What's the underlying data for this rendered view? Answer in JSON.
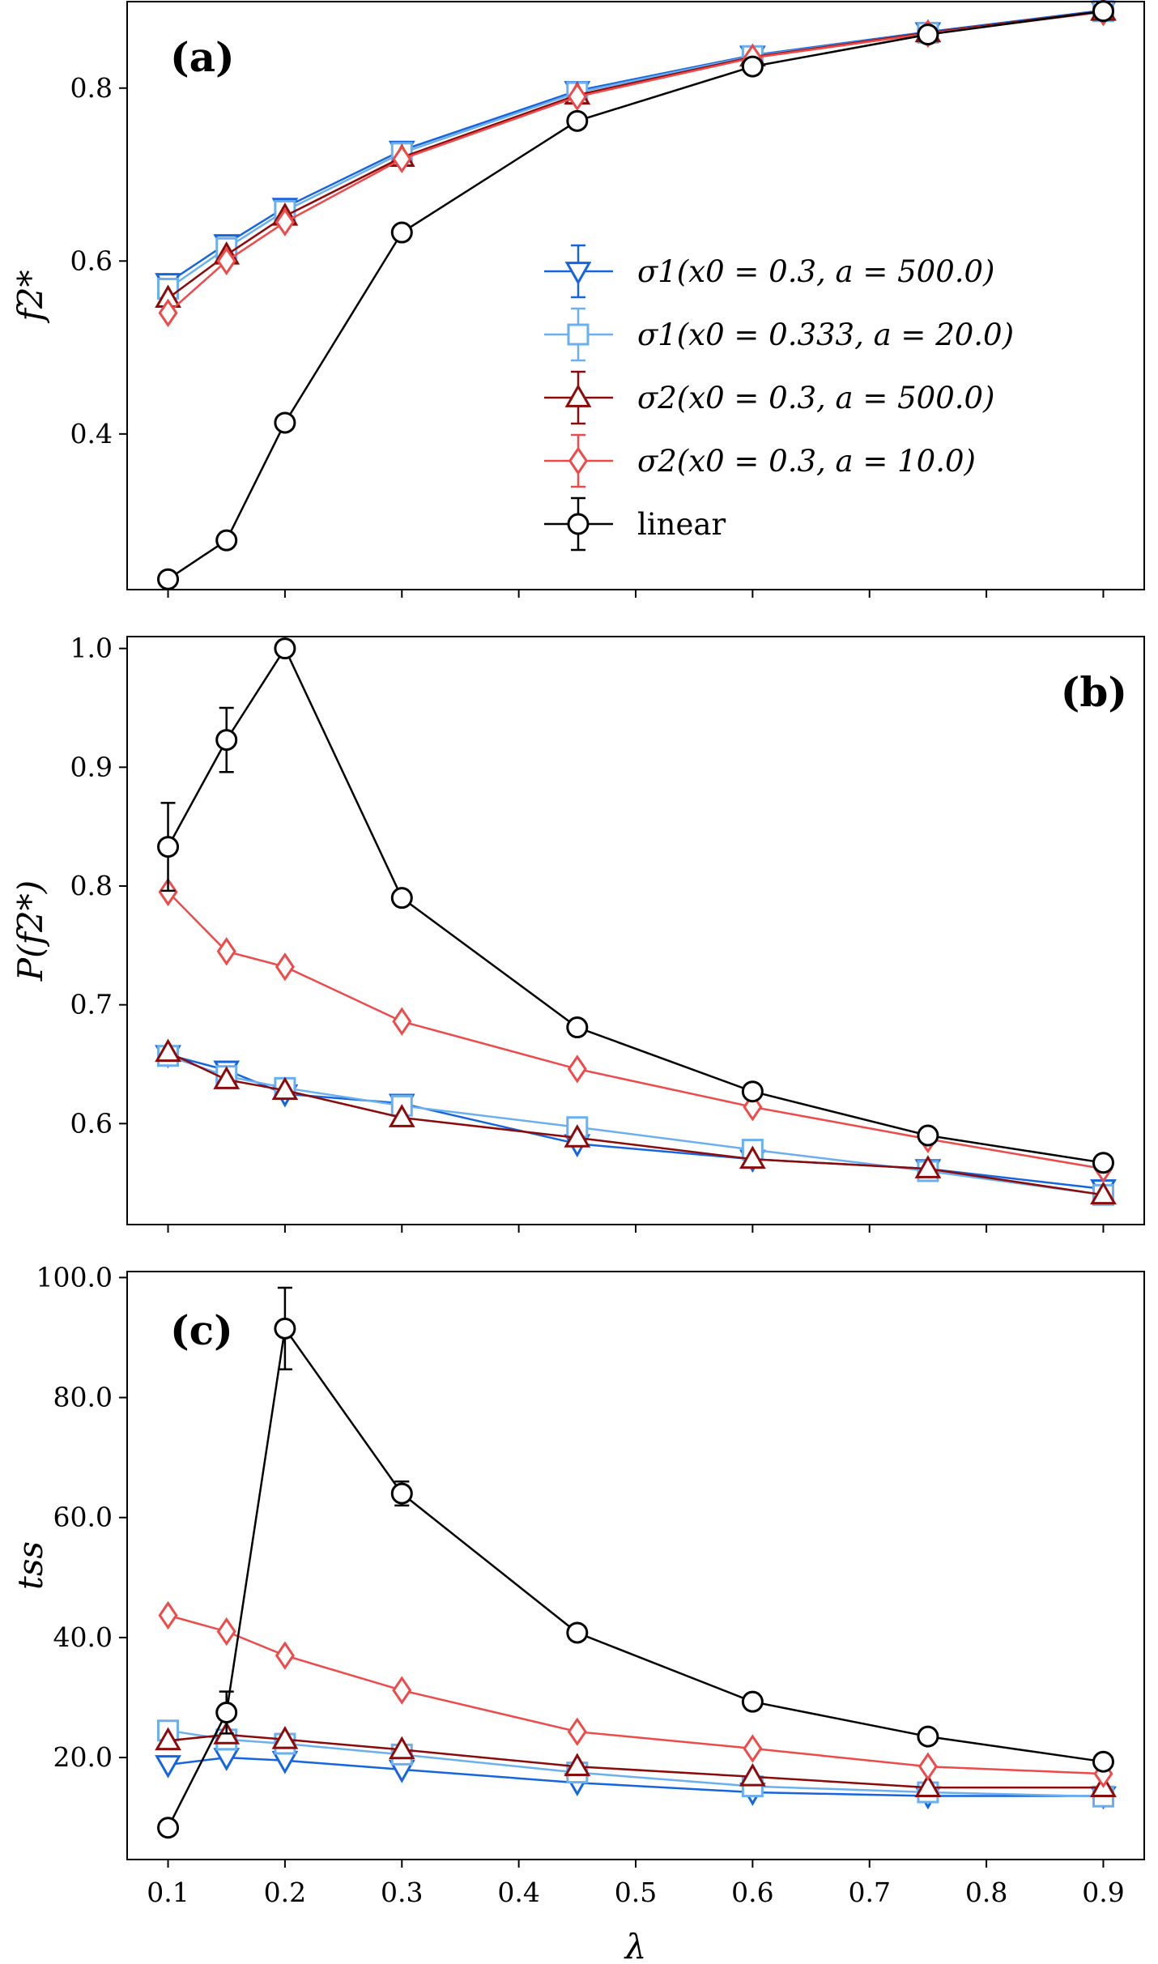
{
  "figure": {
    "xlabel": "λ"
  },
  "legend": {
    "entries": [
      {
        "label": "σ1(x0 = 0.3, a = 500.0)",
        "color": "#1565e0",
        "marker": "triangle-down-icon"
      },
      {
        "label": "σ1(x0 = 0.333, a = 20.0)",
        "color": "#6aaff0",
        "marker": "square-icon"
      },
      {
        "label": "σ2(x0 = 0.3, a = 500.0)",
        "color": "#8b0a0a",
        "marker": "triangle-up-icon"
      },
      {
        "label": "σ2(x0 = 0.3, a = 10.0)",
        "color": "#ee4a4a",
        "marker": "diamond-icon"
      },
      {
        "label": "linear",
        "color": "#000000",
        "marker": "circle-icon"
      }
    ]
  },
  "chart_data": [
    {
      "type": "line",
      "panel": "(a)",
      "ylabel": "f2*",
      "x": [
        0.1,
        0.15,
        0.2,
        0.3,
        0.45,
        0.6,
        0.75,
        0.9
      ],
      "ylim": [
        0.22,
        0.9
      ],
      "yticks": [
        0.4,
        0.6,
        0.8
      ],
      "series": [
        {
          "name": "σ1(x0 = 0.3, a = 500.0)",
          "values": [
            0.575,
            0.62,
            0.662,
            0.728,
            0.797,
            0.838,
            0.865,
            0.89
          ]
        },
        {
          "name": "σ1(x0 = 0.333, a = 20.0)",
          "values": [
            0.568,
            0.615,
            0.658,
            0.725,
            0.795,
            0.837,
            0.864,
            0.889
          ]
        },
        {
          "name": "σ2(x0 = 0.3, a = 500.0)",
          "values": [
            0.557,
            0.607,
            0.652,
            0.72,
            0.792,
            0.836,
            0.864,
            0.889
          ]
        },
        {
          "name": "σ2(x0 = 0.3, a = 10.0)",
          "values": [
            0.54,
            0.6,
            0.645,
            0.718,
            0.79,
            0.835,
            0.863,
            0.888
          ]
        },
        {
          "name": "linear",
          "values": [
            0.232,
            0.277,
            0.413,
            0.633,
            0.762,
            0.825,
            0.862,
            0.889
          ]
        }
      ]
    },
    {
      "type": "line",
      "panel": "(b)",
      "ylabel": "P(f2*)",
      "x": [
        0.1,
        0.15,
        0.2,
        0.3,
        0.45,
        0.6,
        0.75,
        0.9
      ],
      "ylim": [
        0.515,
        1.01
      ],
      "yticks": [
        0.6,
        0.7,
        0.8,
        0.9,
        1.0
      ],
      "series": [
        {
          "name": "σ1(x0 = 0.3, a = 500.0)",
          "values": [
            0.658,
            0.645,
            0.625,
            0.617,
            0.583,
            0.57,
            0.562,
            0.545
          ]
        },
        {
          "name": "σ1(x0 = 0.333, a = 20.0)",
          "values": [
            0.657,
            0.64,
            0.63,
            0.615,
            0.597,
            0.578,
            0.56,
            0.54
          ]
        },
        {
          "name": "σ2(x0 = 0.3, a = 500.0)",
          "values": [
            0.66,
            0.637,
            0.628,
            0.605,
            0.588,
            0.57,
            0.562,
            0.54
          ]
        },
        {
          "name": "σ2(x0 = 0.3, a = 10.0)",
          "values": [
            0.795,
            0.745,
            0.732,
            0.686,
            0.646,
            0.614,
            0.587,
            0.562
          ]
        },
        {
          "name": "linear",
          "values": [
            0.833,
            0.923,
            1.0,
            0.79,
            0.681,
            0.627,
            0.59,
            0.567
          ],
          "error": [
            0.037,
            0.027,
            0,
            0,
            0,
            0,
            0,
            0
          ]
        }
      ]
    },
    {
      "type": "line",
      "panel": "(c)",
      "ylabel": "tss",
      "xlabel": "λ",
      "x": [
        0.1,
        0.15,
        0.2,
        0.3,
        0.45,
        0.6,
        0.75,
        0.9
      ],
      "xlim": [
        0.065,
        0.935
      ],
      "xticks": [
        0.1,
        0.2,
        0.3,
        0.4,
        0.5,
        0.6,
        0.7,
        0.8,
        0.9
      ],
      "ylim": [
        3,
        101
      ],
      "yticks": [
        20,
        40,
        60,
        80,
        100
      ],
      "series": [
        {
          "name": "σ1(x0 = 0.3, a = 500.0)",
          "values": [
            18.8,
            20.0,
            19.5,
            18.0,
            15.8,
            14.2,
            13.6,
            13.6
          ]
        },
        {
          "name": "σ1(x0 = 0.333, a = 20.0)",
          "values": [
            24.5,
            23.0,
            22.3,
            20.5,
            17.5,
            15.2,
            14.2,
            13.5
          ]
        },
        {
          "name": "σ2(x0 = 0.3, a = 500.0)",
          "values": [
            22.8,
            23.8,
            23.0,
            21.3,
            18.5,
            16.8,
            15.0,
            15.0
          ]
        },
        {
          "name": "σ2(x0 = 0.3, a = 10.0)",
          "values": [
            43.7,
            41.0,
            37.0,
            31.2,
            24.3,
            21.5,
            18.5,
            17.3
          ]
        },
        {
          "name": "linear",
          "values": [
            8.3,
            27.5,
            91.5,
            64.0,
            40.8,
            29.3,
            23.5,
            19.3
          ],
          "error": [
            0,
            3.5,
            6.8,
            2.0,
            0,
            0,
            0,
            0
          ]
        }
      ]
    }
  ]
}
